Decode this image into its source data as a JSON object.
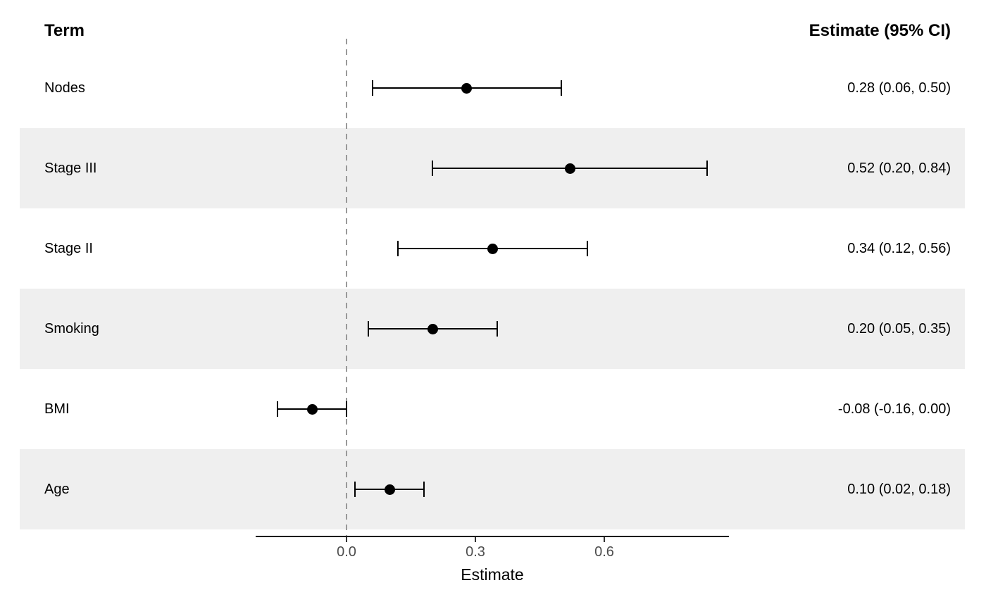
{
  "header": {
    "term": "Term",
    "estimate": "Estimate (95% CI)"
  },
  "axis": {
    "label": "Estimate",
    "ticks": [
      {
        "value": 0.0,
        "label": "0.0"
      },
      {
        "value": 0.3,
        "label": "0.3"
      },
      {
        "value": 0.6,
        "label": "0.6"
      }
    ]
  },
  "colors": {
    "band": "#EFEFEF",
    "marker": "#000000",
    "error_bar": "#000000",
    "zero_line": "#999999",
    "axis_line": "#000000",
    "tick_mark": "#333333",
    "tick_text": "#4D4D4D",
    "text": "#000000"
  },
  "chart_data": {
    "type": "scatter",
    "variant": "forest-plot",
    "title": "",
    "xlabel": "Estimate",
    "ylabel": "",
    "xlim": [
      -0.21,
      0.89
    ],
    "x_ticks": [
      0.0,
      0.3,
      0.6
    ],
    "zero_reference_line": 0.0,
    "grid": false,
    "legend": false,
    "rows": [
      {
        "term": "Nodes",
        "estimate": 0.28,
        "ci_low": 0.06,
        "ci_high": 0.5,
        "label": "0.28 (0.06, 0.50)",
        "striped": false
      },
      {
        "term": "Stage III",
        "estimate": 0.52,
        "ci_low": 0.2,
        "ci_high": 0.84,
        "label": "0.52 (0.20, 0.84)",
        "striped": true
      },
      {
        "term": "Stage II",
        "estimate": 0.34,
        "ci_low": 0.12,
        "ci_high": 0.56,
        "label": "0.34 (0.12, 0.56)",
        "striped": false
      },
      {
        "term": "Smoking",
        "estimate": 0.2,
        "ci_low": 0.05,
        "ci_high": 0.35,
        "label": "0.20 (0.05, 0.35)",
        "striped": true
      },
      {
        "term": "BMI",
        "estimate": -0.08,
        "ci_low": -0.16,
        "ci_high": 0.0,
        "label": "-0.08 (-0.16, 0.00)",
        "striped": false
      },
      {
        "term": "Age",
        "estimate": 0.1,
        "ci_low": 0.02,
        "ci_high": 0.18,
        "label": "0.10 (0.02, 0.18)",
        "striped": true
      }
    ]
  }
}
